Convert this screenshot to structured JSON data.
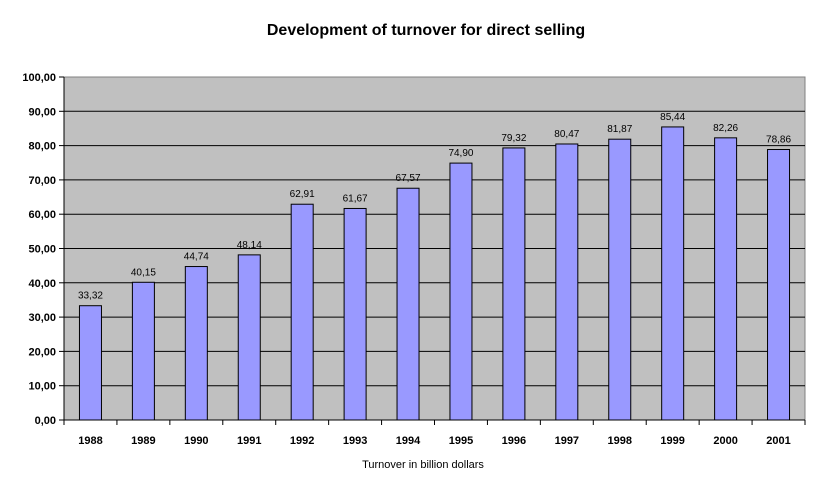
{
  "chart_data": {
    "type": "bar",
    "title": "Development of turnover for direct selling",
    "xlabel": "Turnover in billion dollars",
    "ylabel": "",
    "categories": [
      "1988",
      "1989",
      "1990",
      "1991",
      "1992",
      "1993",
      "1994",
      "1995",
      "1996",
      "1997",
      "1998",
      "1999",
      "2000",
      "2001"
    ],
    "values": [
      33.32,
      40.15,
      44.74,
      48.14,
      62.91,
      61.67,
      67.57,
      74.9,
      79.32,
      80.47,
      81.87,
      85.44,
      82.26,
      78.86
    ],
    "value_labels": [
      "33,32",
      "40,15",
      "44,74",
      "48,14",
      "62,91",
      "61,67",
      "67,57",
      "74,90",
      "79,32",
      "80,47",
      "81,87",
      "85,44",
      "82,26",
      "78,86"
    ],
    "ylim": [
      0,
      100
    ],
    "yticks": [
      0,
      10,
      20,
      30,
      40,
      50,
      60,
      70,
      80,
      90,
      100
    ],
    "ytick_labels": [
      "0,00",
      "10,00",
      "20,00",
      "30,00",
      "40,00",
      "50,00",
      "60,00",
      "70,00",
      "80,00",
      "90,00",
      "100,00"
    ],
    "grid": true,
    "colors": {
      "bar": "#9999ff",
      "plot_bg": "#c0c0c0",
      "grid": "#000000"
    }
  }
}
